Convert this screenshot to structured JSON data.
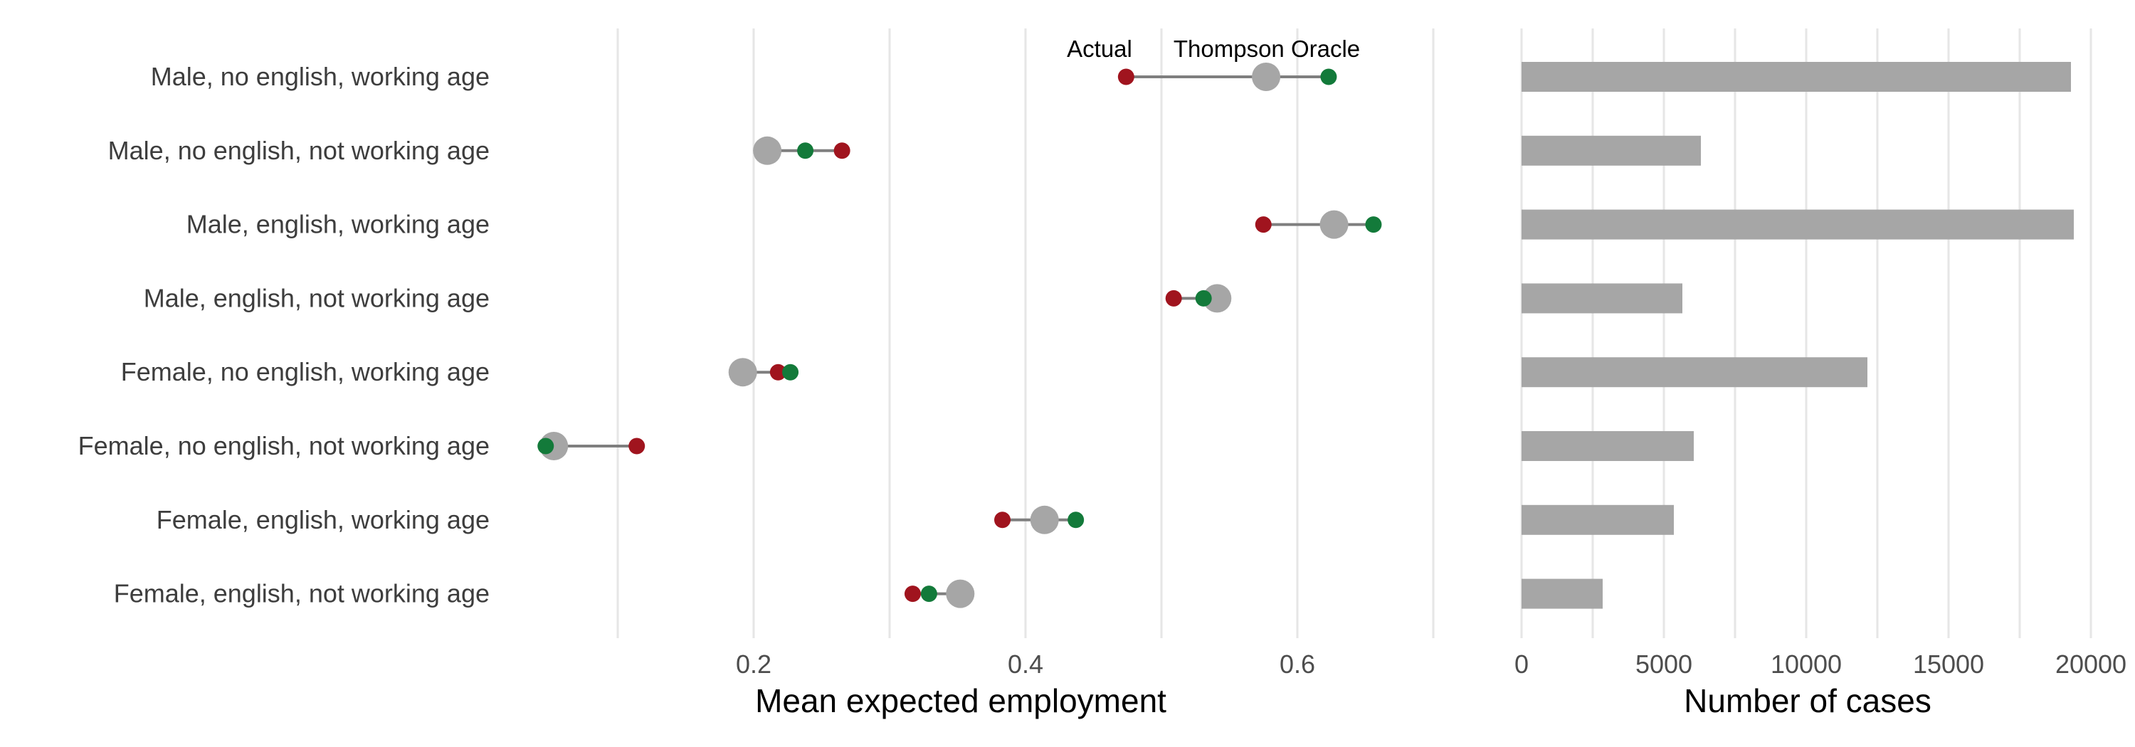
{
  "chart_data": [
    {
      "type": "dumbbell",
      "xlabel": "Mean expected employment",
      "xlim": [
        0.05,
        0.75
      ],
      "xticks": [
        0.2,
        0.4,
        0.6
      ],
      "tick_labels": [
        "0.2",
        "0.4",
        "0.6"
      ],
      "grid": true,
      "annotations": [
        "Actual",
        "Thompson Oracle"
      ],
      "categories": [
        "Male, no english, working age",
        "Male, no english, not working age",
        "Male, english, working age",
        "Male, english, not working age",
        "Female, no english, working age",
        "Female, no english, not working age",
        "Female, english, working age",
        "Female, english, not working age"
      ],
      "series": [
        {
          "values": [
            0.474,
            0.265,
            0.575,
            0.509,
            0.218,
            0.114,
            0.383,
            0.317
          ],
          "color": "#a0141e"
        },
        {
          "values": [
            0.577,
            0.21,
            0.627,
            0.541,
            0.192,
            0.053,
            0.414,
            0.352
          ],
          "color": "#a6a6a6"
        },
        {
          "values": [
            0.623,
            0.238,
            0.656,
            0.531,
            0.227,
            0.047,
            0.437,
            0.329
          ],
          "color": "#137a3a"
        }
      ]
    },
    {
      "type": "bar",
      "orientation": "horizontal",
      "xlabel": "Number of cases",
      "xlim": [
        0,
        20000
      ],
      "xticks": [
        0,
        5000,
        10000,
        15000,
        20000
      ],
      "tick_labels": [
        "0",
        "5000",
        "10000",
        "15000",
        "20000"
      ],
      "grid": true,
      "color": "#a6a6a6",
      "categories": [
        "Male, no english, working age",
        "Male, no english, not working age",
        "Male, english, working age",
        "Male, english, not working age",
        "Female, no english, working age",
        "Female, no english, not working age",
        "Female, english, working age",
        "Female, english, not working age"
      ],
      "values": [
        19300,
        6300,
        19400,
        5650,
        12150,
        6050,
        5350,
        2850
      ]
    }
  ]
}
